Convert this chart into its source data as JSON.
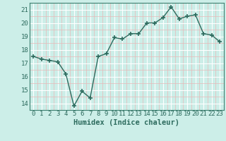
{
  "x": [
    0,
    1,
    2,
    3,
    4,
    5,
    6,
    7,
    8,
    9,
    10,
    11,
    12,
    13,
    14,
    15,
    16,
    17,
    18,
    19,
    20,
    21,
    22,
    23
  ],
  "y": [
    17.5,
    17.3,
    17.2,
    17.1,
    16.2,
    13.8,
    14.9,
    14.4,
    17.5,
    17.7,
    18.9,
    18.8,
    19.2,
    19.2,
    20.0,
    20.0,
    20.4,
    21.2,
    20.3,
    20.5,
    20.6,
    19.2,
    19.1,
    18.6
  ],
  "line_color": "#2d6b5e",
  "marker": "+",
  "marker_size": 4,
  "marker_linewidth": 1.2,
  "bg_color": "#cceee8",
  "grid_major_color": "#ffffff",
  "grid_minor_color": "#e8b8b8",
  "xlabel": "Humidex (Indice chaleur)",
  "ylim": [
    13.5,
    21.5
  ],
  "xlim": [
    -0.5,
    23.5
  ],
  "yticks": [
    14,
    15,
    16,
    17,
    18,
    19,
    20,
    21
  ],
  "xticks": [
    0,
    1,
    2,
    3,
    4,
    5,
    6,
    7,
    8,
    9,
    10,
    11,
    12,
    13,
    14,
    15,
    16,
    17,
    18,
    19,
    20,
    21,
    22,
    23
  ],
  "xlabel_fontsize": 7.5,
  "tick_fontsize": 6.5,
  "line_width": 1.0,
  "spine_color": "#3d8070"
}
